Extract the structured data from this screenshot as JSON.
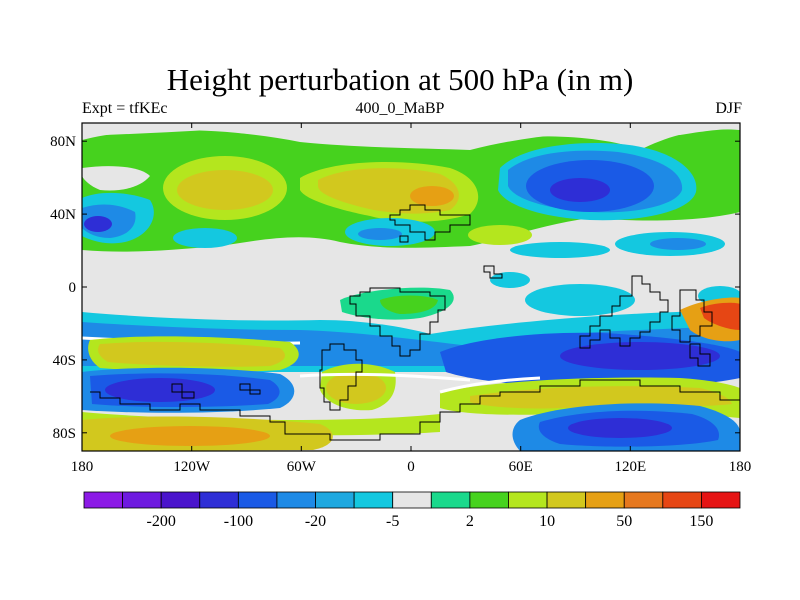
{
  "title": "Height perturbation at 500 hPa (in m)",
  "left_label": "Expt = tfKEc",
  "center_label": "400_0_MaBP",
  "right_label": "DJF",
  "map": {
    "projection": "cylindrical equidistant",
    "lon_range": [
      -180,
      180
    ],
    "lat_range": [
      -90,
      90
    ],
    "lon_ticks": [
      "180",
      "120W",
      "60W",
      "0",
      "60E",
      "120E",
      "180"
    ],
    "lat_ticks": [
      "80N",
      "40N",
      "0",
      "40S",
      "80S"
    ],
    "background_color": "#e6e6e6",
    "coastline_color": "#000000"
  },
  "colorbar": {
    "colors": [
      "#8c1ae6",
      "#6e1ae0",
      "#4a14cc",
      "#2e2ed6",
      "#1a5ae6",
      "#1e8ae6",
      "#1ea8e0",
      "#14c8e0",
      "#e6e6e6",
      "#1ad98c",
      "#46d21e",
      "#b4e61e",
      "#d2c81e",
      "#e6a014",
      "#e6781e",
      "#e64614",
      "#e61414"
    ],
    "labels": [
      "-200",
      "-100",
      "-20",
      "-5",
      "2",
      "10",
      "50",
      "150"
    ]
  }
}
